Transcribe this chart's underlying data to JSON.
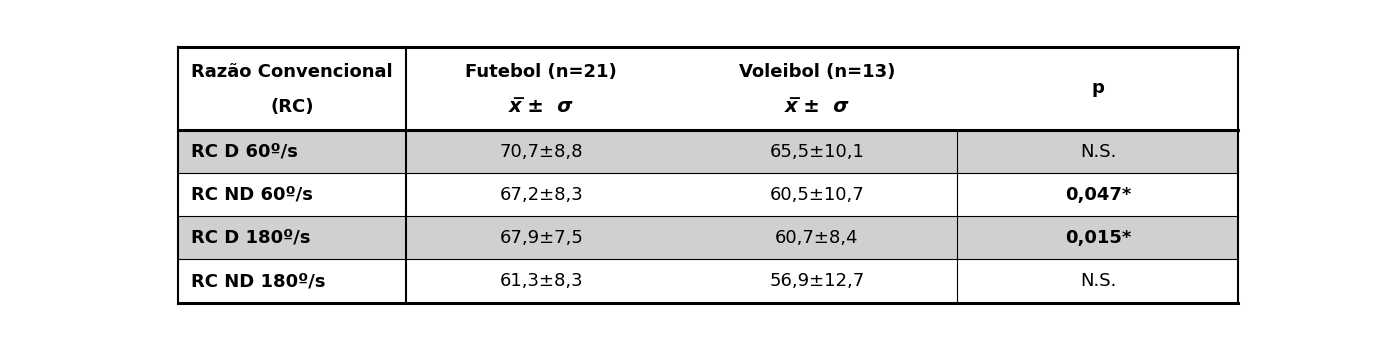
{
  "col_headers_line1": [
    "Razão Convencional",
    "Futebol (n=21)",
    "Voleibol (n=13)",
    "p"
  ],
  "col_headers_line2": [
    "(RC)",
    "x̅ ±  σ",
    "x̅ ±  σ",
    ""
  ],
  "rows": [
    {
      "label": "RC D 60º/s",
      "futebol": "70,7±8,8",
      "voleibol": "65,5±10,1",
      "p": "N.S.",
      "bold_label": true,
      "bold_p": false,
      "shaded": true
    },
    {
      "label": "RC ND 60º/s",
      "futebol": "67,2±8,3",
      "voleibol": "60,5±10,7",
      "p": "0,047*",
      "bold_label": false,
      "bold_p": true,
      "shaded": false
    },
    {
      "label": "RC D 180º/s",
      "futebol": "67,9±7,5",
      "voleibol": "60,7±8,4",
      "p": "0,015*",
      "bold_label": true,
      "bold_p": true,
      "shaded": true
    },
    {
      "label": "RC ND 180º/s",
      "futebol": "61,3±8,3",
      "voleibol": "56,9±12,7",
      "p": "N.S.",
      "bold_label": false,
      "bold_p": false,
      "shaded": false
    }
  ],
  "shaded_color": "#d0d0d0",
  "white_color": "#ffffff",
  "border_color": "#000000",
  "fig_width": 13.82,
  "fig_height": 3.46,
  "dpi": 100
}
